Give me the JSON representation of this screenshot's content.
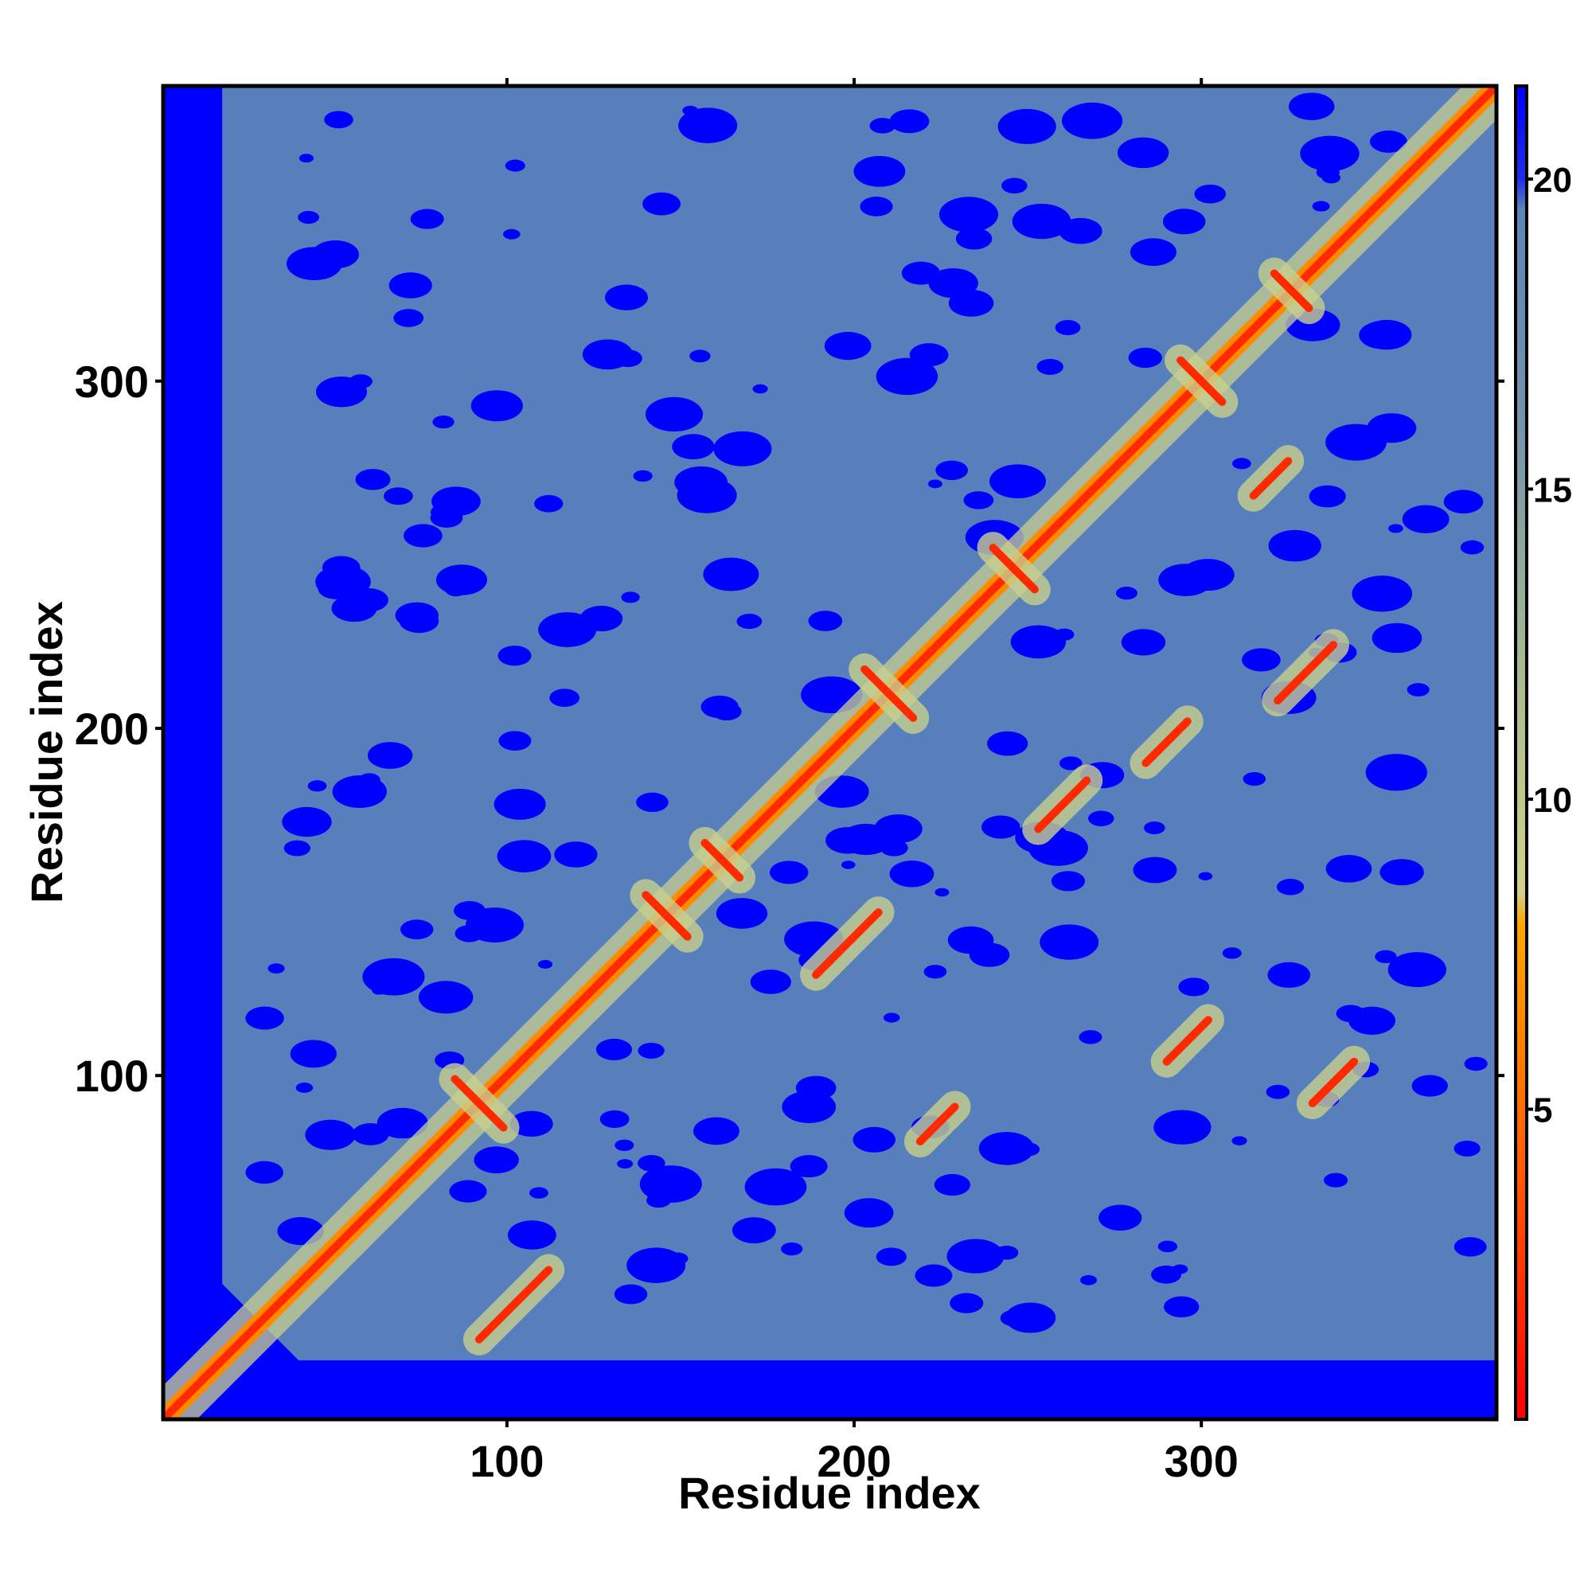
{
  "chart_data": {
    "type": "heatmap",
    "title": "",
    "xlabel": "Residue index",
    "ylabel": "Residue index",
    "xlim": [
      1,
      385
    ],
    "ylim": [
      1,
      385
    ],
    "xticks": [
      100,
      200,
      300
    ],
    "yticks": [
      100,
      200,
      300
    ],
    "colorbar": {
      "ticks": [
        5,
        10,
        15,
        20
      ],
      "range": [
        0,
        21.5
      ],
      "stops": [
        {
          "value": 0,
          "color": "#ff0000"
        },
        {
          "value": 4,
          "color": "#ff5a00"
        },
        {
          "value": 8,
          "color": "#ffa500"
        },
        {
          "value": 8.5,
          "color": "#cfd28a"
        },
        {
          "value": 12,
          "color": "#a8bb8f"
        },
        {
          "value": 16,
          "color": "#7593ab"
        },
        {
          "value": 19.5,
          "color": "#5b86b8"
        },
        {
          "value": 20,
          "color": "#1f2fe6"
        },
        {
          "value": 21.5,
          "color": "#0000ff"
        }
      ]
    },
    "background_color": "#0000ff",
    "mid_color": "#5b86b8",
    "contact_color": "#ff2a00",
    "near_color": "#c8d08e",
    "description_values": {
      "diagonal_distance": 0,
      "max_distance": 21.5
    },
    "contact_features": [
      {
        "type": "antiparallel",
        "center": [
          92,
          92
        ],
        "length": 14
      },
      {
        "type": "antiparallel",
        "center": [
          146,
          146
        ],
        "length": 12
      },
      {
        "type": "antiparallel",
        "center": [
          162,
          162
        ],
        "length": 10
      },
      {
        "type": "antiparallel",
        "center": [
          210,
          210
        ],
        "length": 14
      },
      {
        "type": "antiparallel",
        "center": [
          246,
          246
        ],
        "length": 12
      },
      {
        "type": "antiparallel",
        "center": [
          300,
          300
        ],
        "length": 12
      },
      {
        "type": "antiparallel",
        "center": [
          326,
          326
        ],
        "length": 10
      },
      {
        "type": "parallel",
        "center": [
          102,
          34
        ],
        "length": 20
      },
      {
        "type": "parallel",
        "center": [
          198,
          138
        ],
        "length": 18
      },
      {
        "type": "parallel",
        "center": [
          330,
          216
        ],
        "length": 16
      },
      {
        "type": "parallel",
        "center": [
          260,
          178
        ],
        "length": 14
      },
      {
        "type": "parallel",
        "center": [
          296,
          110
        ],
        "length": 12
      },
      {
        "type": "parallel",
        "center": [
          338,
          98
        ],
        "length": 12
      },
      {
        "type": "parallel",
        "center": [
          224,
          86
        ],
        "length": 10
      },
      {
        "type": "parallel",
        "center": [
          290,
          196
        ],
        "length": 12
      },
      {
        "type": "parallel",
        "center": [
          320,
          272
        ],
        "length": 10
      }
    ]
  }
}
